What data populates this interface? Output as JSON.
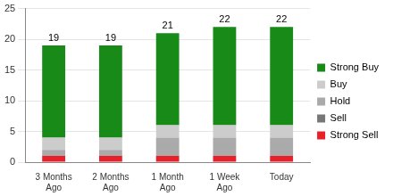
{
  "chart_data": {
    "type": "bar",
    "stacked": true,
    "grid": true,
    "legend": "right",
    "categories": [
      "3 Months Ago",
      "2 Months Ago",
      "1 Month Ago",
      "1 Week Ago",
      "Today"
    ],
    "series": [
      {
        "name": "Strong Sell",
        "color": "#e8202a",
        "values": [
          1,
          1,
          1,
          1,
          1
        ]
      },
      {
        "name": "Sell",
        "color": "#777777",
        "values": [
          0,
          0,
          0,
          0,
          0
        ]
      },
      {
        "name": "Hold",
        "color": "#aaaaaa",
        "values": [
          1,
          1,
          3,
          3,
          3
        ]
      },
      {
        "name": "Buy",
        "color": "#cccccc",
        "values": [
          2,
          2,
          2,
          2,
          2
        ]
      },
      {
        "name": "Strong Buy",
        "color": "#188a18",
        "values": [
          15,
          15,
          15,
          16,
          16
        ]
      }
    ],
    "totals": [
      19,
      19,
      21,
      22,
      22
    ],
    "ylim": [
      0,
      25
    ],
    "yticks": [
      0,
      5,
      10,
      15,
      20,
      25
    ]
  }
}
